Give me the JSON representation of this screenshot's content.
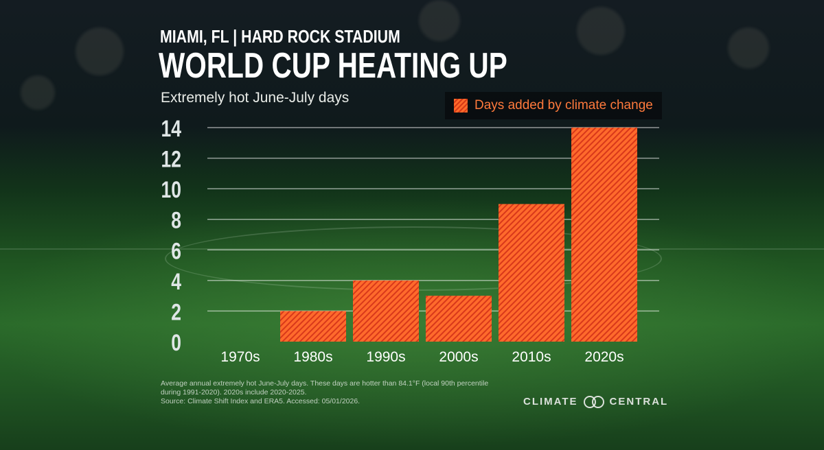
{
  "header": {
    "location": "MIAMI, FL  |  HARD ROCK STADIUM",
    "title": "WORLD CUP HEATING UP",
    "metric": "Extremely hot June-July days"
  },
  "legend": {
    "label": "Days added by climate change",
    "color": "#f2552a"
  },
  "chart_data": {
    "type": "bar",
    "categories": [
      "1970s",
      "1980s",
      "1990s",
      "2000s",
      "2010s",
      "2020s"
    ],
    "series": [
      {
        "name": "Days added by climate change",
        "values": [
          0,
          2,
          4,
          3,
          9,
          14
        ]
      }
    ],
    "yticks": [
      "0",
      "2",
      "4",
      "6",
      "8",
      "10",
      "12",
      "14"
    ],
    "ylim": [
      0,
      14
    ],
    "grid": true,
    "legend_position": "top-right",
    "title": "WORLD CUP HEATING UP",
    "xlabel": "",
    "ylabel": ""
  },
  "footnote": {
    "line1": "Average annual extremely hot June-July days. These days are hotter than 84.1°F (local 90th percentile",
    "line2": "during 1991-2020). 2020s include 2020-2025.",
    "line3": "Source: Climate Shift Index and ERA5. Accessed: 05/01/2026."
  },
  "brand": {
    "left": "CLIMATE",
    "right": "CENTRAL",
    "logo_icon": "linked-rings-icon"
  }
}
